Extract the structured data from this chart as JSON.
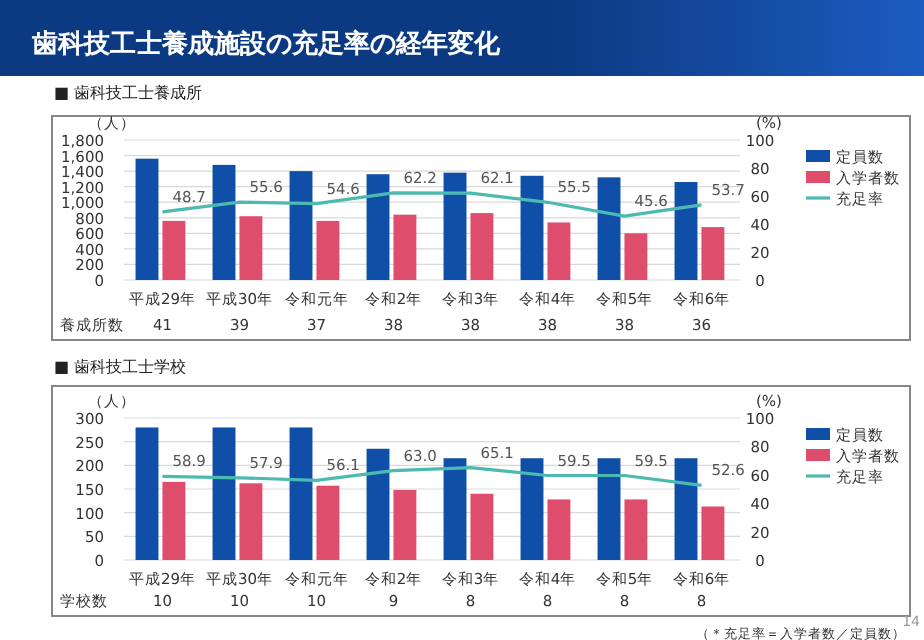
{
  "chart_data": [
    {
      "type": "bar",
      "title": "歯科技工士養成施設の充足率の経年変化",
      "subtitle": "■ 歯科技工士養成所",
      "ylabel": "（人）",
      "y2label": "(%)",
      "categories": [
        "平成29年",
        "平成30年",
        "令和元年",
        "令和2年",
        "令和3年",
        "令和4年",
        "令和5年",
        "令和6年"
      ],
      "series": [
        {
          "name": "定員数",
          "color": "#0f4fa8",
          "values": [
            1560,
            1480,
            1400,
            1360,
            1380,
            1340,
            1320,
            1260
          ]
        },
        {
          "name": "入学者数",
          "color": "#de4d6c",
          "values": [
            760,
            820,
            760,
            840,
            860,
            740,
            600,
            680
          ]
        },
        {
          "name": "充足率",
          "type": "line",
          "axis": "y2",
          "color": "#4dbab2",
          "values": [
            48.7,
            55.6,
            54.6,
            62.2,
            62.1,
            55.5,
            45.6,
            53.7
          ],
          "value_labels": [
            "48.7",
            "55.6",
            "54.6",
            "62.2",
            "62.1",
            "55.5",
            "45.6",
            "53.7"
          ]
        }
      ],
      "ylim": [
        0,
        1800
      ],
      "yticks": [
        0,
        200,
        400,
        600,
        800,
        {
          "value": 1000,
          "label": "1,000"
        },
        {
          "value": 1200,
          "label": "1,200"
        },
        {
          "value": 1400,
          "label": "1,400"
        },
        {
          "value": 1600,
          "label": "1,600"
        },
        {
          "value": 1800,
          "label": "1,800"
        }
      ],
      "y2lim": [
        0,
        100
      ],
      "y2ticks": [
        0,
        20,
        40,
        60,
        80,
        100
      ],
      "grid": "y",
      "legend": "right",
      "marker": "none",
      "line_style": "solid",
      "annotations": [
        "養成所数",
        "41",
        "39",
        "37",
        "38",
        "38",
        "38",
        "38",
        "36"
      ]
    },
    {
      "type": "bar",
      "subtitle": "■ 歯科技工士学校",
      "ylabel": "（人）",
      "y2label": "(%)",
      "categories": [
        "平成29年",
        "平成30年",
        "令和元年",
        "令和2年",
        "令和3年",
        "令和4年",
        "令和5年",
        "令和6年"
      ],
      "series": [
        {
          "name": "定員数",
          "color": "#0f4fa8",
          "values": [
            280,
            280,
            280,
            235,
            215,
            215,
            215,
            215
          ]
        },
        {
          "name": "入学者数",
          "color": "#de4d6c",
          "values": [
            165,
            162,
            157,
            148,
            140,
            128,
            128,
            113
          ]
        },
        {
          "name": "充足率",
          "type": "line",
          "axis": "y2",
          "color": "#4dbab2",
          "values": [
            58.9,
            57.9,
            56.1,
            63.0,
            65.1,
            59.5,
            59.5,
            52.6
          ],
          "value_labels": [
            "58.9",
            "57.9",
            "56.1",
            "63.0",
            "65.1",
            "59.5",
            "59.5",
            "52.6"
          ]
        }
      ],
      "ylim": [
        0,
        300
      ],
      "yticks": [
        0,
        50,
        100,
        150,
        200,
        250,
        300
      ],
      "y2lim": [
        0,
        100
      ],
      "y2ticks": [
        0,
        20,
        40,
        60,
        80,
        100
      ],
      "grid": "y",
      "legend": "right",
      "marker": "none",
      "line_style": "solid",
      "annotations": [
        "学校数",
        "10",
        "10",
        "10",
        "9",
        "8",
        "8",
        "8",
        "8",
        "（＊充足率＝入学者数／定員数）",
        "14"
      ]
    }
  ]
}
